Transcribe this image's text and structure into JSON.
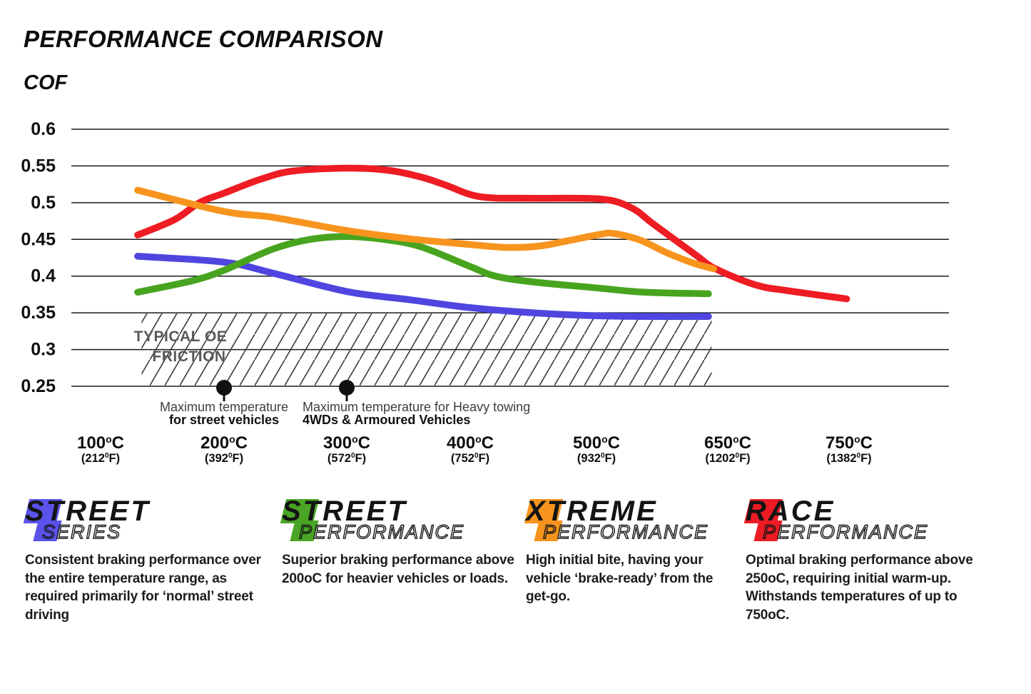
{
  "title": "PERFORMANCE COMPARISON",
  "y_axis_label": "COF",
  "chart_data": {
    "type": "line",
    "title": "PERFORMANCE COMPARISON",
    "ylabel": "COF",
    "ylim": [
      0.25,
      0.6
    ],
    "grid": "horizontal-only",
    "y_ticks": [
      "0.6",
      "0.55",
      "0.5",
      "0.45",
      "0.4",
      "0.35",
      "0.3",
      "0.25"
    ],
    "x_ticks": [
      {
        "value": 100,
        "celsius": "100",
        "fahrenheit": "212"
      },
      {
        "value": 200,
        "celsius": "200",
        "fahrenheit": "392"
      },
      {
        "value": 300,
        "celsius": "300",
        "fahrenheit": "572"
      },
      {
        "value": 400,
        "celsius": "400",
        "fahrenheit": "752"
      },
      {
        "value": 500,
        "celsius": "500",
        "fahrenheit": "932"
      },
      {
        "value": 650,
        "celsius": "650",
        "fahrenheit": "1202"
      },
      {
        "value": 750,
        "celsius": "750",
        "fahrenheit": "1382"
      }
    ],
    "oe_friction_zone": {
      "label_line1": "TYPICAL OE",
      "label_line2": "FRICTION",
      "cof_range": [
        0.25,
        0.35
      ],
      "temp_range": [
        132,
        630
      ]
    },
    "annotations": [
      {
        "temp": 200,
        "line1": "Maximum temperature",
        "line2": "for street vehicles",
        "align": "center"
      },
      {
        "temp": 300,
        "line1": "Maximum temperature for Heavy towing",
        "line2": "4WDs & Armoured Vehicles",
        "align": "left"
      }
    ],
    "series": [
      {
        "id": "street-series",
        "name": "Street Series",
        "color": "#4f46e0",
        "points": [
          [
            130,
            0.427
          ],
          [
            200,
            0.419
          ],
          [
            240,
            0.404
          ],
          [
            300,
            0.379
          ],
          [
            350,
            0.368
          ],
          [
            400,
            0.357
          ],
          [
            450,
            0.35
          ],
          [
            500,
            0.346
          ],
          [
            560,
            0.345
          ],
          [
            628,
            0.345
          ]
        ]
      },
      {
        "id": "street-performance",
        "name": "Street Performance",
        "color": "#48a41f",
        "points": [
          [
            130,
            0.378
          ],
          [
            175,
            0.394
          ],
          [
            200,
            0.408
          ],
          [
            240,
            0.437
          ],
          [
            270,
            0.45
          ],
          [
            300,
            0.454
          ],
          [
            330,
            0.45
          ],
          [
            360,
            0.44
          ],
          [
            400,
            0.413
          ],
          [
            420,
            0.4
          ],
          [
            450,
            0.392
          ],
          [
            500,
            0.384
          ],
          [
            555,
            0.378
          ],
          [
            628,
            0.376
          ]
        ]
      },
      {
        "id": "race-performance",
        "name": "Race Performance",
        "color": "#ee1c23",
        "points": [
          [
            130,
            0.456
          ],
          [
            160,
            0.477
          ],
          [
            180,
            0.5
          ],
          [
            200,
            0.513
          ],
          [
            230,
            0.532
          ],
          [
            256,
            0.543
          ],
          [
            300,
            0.547
          ],
          [
            334,
            0.544
          ],
          [
            360,
            0.535
          ],
          [
            380,
            0.524
          ],
          [
            408,
            0.508
          ],
          [
            450,
            0.506
          ],
          [
            505,
            0.505
          ],
          [
            540,
            0.493
          ],
          [
            566,
            0.47
          ],
          [
            612,
            0.43
          ],
          [
            636,
            0.41
          ],
          [
            673,
            0.388
          ],
          [
            700,
            0.38
          ],
          [
            748,
            0.369
          ]
        ]
      },
      {
        "id": "xtreme-performance",
        "name": "Xtreme Performance",
        "color": "#f7941d",
        "points": [
          [
            130,
            0.517
          ],
          [
            200,
            0.488
          ],
          [
            240,
            0.48
          ],
          [
            300,
            0.462
          ],
          [
            350,
            0.451
          ],
          [
            400,
            0.443
          ],
          [
            430,
            0.439
          ],
          [
            455,
            0.441
          ],
          [
            480,
            0.449
          ],
          [
            505,
            0.457
          ],
          [
            520,
            0.458
          ],
          [
            550,
            0.449
          ],
          [
            580,
            0.432
          ],
          [
            610,
            0.418
          ],
          [
            634,
            0.41
          ]
        ]
      }
    ]
  },
  "legend": {
    "items": [
      {
        "word1": "STREET",
        "word2": "SERIES",
        "color": "#5a52ea",
        "description": "Consistent braking performance over the entire temperature range, as required primarily for ‘normal’ street driving"
      },
      {
        "word1": "STREET",
        "word2": "PERFORMANCE",
        "color": "#4aa425",
        "description": "Superior braking performance above 200oC for heavier vehicles or loads."
      },
      {
        "word1": "XTREME",
        "word2": "PERFORMANCE",
        "color": "#f7941d",
        "description": "High initial bite, having your vehicle ‘brake-ready’ from the get-go."
      },
      {
        "word1": "RACE",
        "word2": "PERFORMANCE",
        "color": "#ed1c24",
        "description": "Optimal braking performance above 250oC, requiring initial warm-up. Withstands temperatures of up to 750oC."
      }
    ]
  }
}
